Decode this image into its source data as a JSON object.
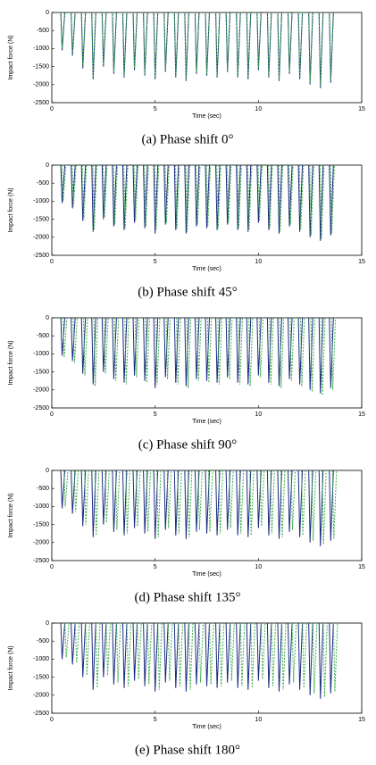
{
  "chart_data": [
    {
      "type": "spike",
      "caption": "(a) Phase shift 0°",
      "xlabel": "Time (sec)",
      "ylabel": "Impact force (N)",
      "xlim": [
        0,
        15
      ],
      "ylim": [
        -2500,
        0
      ],
      "xticks": [
        0,
        5,
        10,
        15
      ],
      "yticks": [
        0,
        -500,
        -1000,
        -1500,
        -2000,
        -2500
      ],
      "series": [
        {
          "color": "#1a2a80",
          "dash": false,
          "x": [
            0.5,
            1,
            1.5,
            2,
            2.5,
            3,
            3.5,
            4,
            4.5,
            5,
            5.5,
            6,
            6.5,
            7,
            7.5,
            8,
            8.5,
            9,
            9.5,
            10,
            10.5,
            11,
            11.5,
            12,
            12.5,
            13,
            13.5
          ],
          "values": [
            -1050,
            -1200,
            -1550,
            -1850,
            -1500,
            -1700,
            -1800,
            -1600,
            -1750,
            -1850,
            -1650,
            -1800,
            -1900,
            -1700,
            -1750,
            -1800,
            -1650,
            -1800,
            -1850,
            -1600,
            -1800,
            -1900,
            -1700,
            -1850,
            -2000,
            -2100,
            -1950
          ]
        },
        {
          "color": "#3cb04c",
          "dash": true,
          "x": [
            0.5,
            1,
            1.5,
            2,
            2.5,
            3,
            3.5,
            4,
            4.5,
            5,
            5.5,
            6,
            6.5,
            7,
            7.5,
            8,
            8.5,
            9,
            9.5,
            10,
            10.5,
            11,
            11.5,
            12,
            12.5,
            13,
            13.5
          ],
          "values": [
            -1000,
            -1150,
            -1500,
            -1800,
            -1450,
            -1650,
            -1750,
            -1550,
            -1700,
            -1800,
            -1600,
            -1750,
            -1850,
            -1650,
            -1700,
            -1750,
            -1600,
            -1750,
            -1800,
            -1550,
            -1750,
            -1850,
            -1650,
            -1800,
            -1950,
            -2050,
            -1900
          ]
        }
      ]
    },
    {
      "type": "spike",
      "caption": "(b) Phase shift 45°",
      "xlabel": "Time (sec)",
      "ylabel": "Impact force (N)",
      "xlim": [
        0,
        15
      ],
      "ylim": [
        -2500,
        0
      ],
      "xticks": [
        0,
        5,
        10,
        15
      ],
      "yticks": [
        0,
        -500,
        -1000,
        -1500,
        -2000,
        -2500
      ],
      "series": [
        {
          "color": "#1a2a80",
          "dash": false,
          "x": [
            0.5,
            1,
            1.5,
            2,
            2.5,
            3,
            3.5,
            4,
            4.5,
            5,
            5.5,
            6,
            6.5,
            7,
            7.5,
            8,
            8.5,
            9,
            9.5,
            10,
            10.5,
            11,
            11.5,
            12,
            12.5,
            13,
            13.5
          ],
          "values": [
            -1050,
            -1200,
            -1550,
            -1850,
            -1500,
            -1700,
            -1800,
            -1600,
            -1750,
            -1900,
            -1650,
            -1800,
            -1900,
            -1700,
            -1750,
            -1800,
            -1650,
            -1800,
            -1850,
            -1600,
            -1800,
            -1900,
            -1700,
            -1850,
            -2000,
            -2100,
            -1950
          ]
        },
        {
          "color": "#3cb04c",
          "dash": true,
          "x": [
            0.55,
            1.05,
            1.55,
            2.05,
            2.55,
            3.05,
            3.55,
            4.05,
            4.55,
            5.05,
            5.55,
            6.05,
            6.55,
            7.05,
            7.55,
            8.05,
            8.55,
            9.05,
            9.55,
            10.05,
            10.55,
            11.05,
            11.55,
            12.05,
            12.55,
            13.05,
            13.55
          ],
          "values": [
            -1000,
            -1150,
            -1500,
            -1800,
            -1450,
            -1650,
            -1750,
            -1550,
            -1700,
            -1800,
            -1600,
            -1750,
            -1850,
            -1650,
            -1700,
            -1750,
            -1600,
            -1750,
            -1800,
            -1550,
            -1750,
            -1850,
            -1650,
            -1800,
            -1950,
            -2050,
            -1900
          ]
        }
      ]
    },
    {
      "type": "spike",
      "caption": "(c) Phase shift 90°",
      "xlabel": "Time (sec)",
      "ylabel": "Impact force (N)",
      "xlim": [
        0,
        15
      ],
      "ylim": [
        -2500,
        0
      ],
      "xticks": [
        0,
        5,
        10,
        15
      ],
      "yticks": [
        0,
        -500,
        -1000,
        -1500,
        -2000,
        -2500
      ],
      "series": [
        {
          "color": "#1a2a80",
          "dash": false,
          "x": [
            0.5,
            1,
            1.5,
            2,
            2.5,
            3,
            3.5,
            4,
            4.5,
            5,
            5.5,
            6,
            6.5,
            7,
            7.5,
            8,
            8.5,
            9,
            9.5,
            10,
            10.5,
            11,
            11.5,
            12,
            12.5,
            13,
            13.5
          ],
          "values": [
            -1050,
            -1200,
            -1550,
            -1850,
            -1500,
            -1700,
            -1800,
            -1600,
            -1750,
            -1950,
            -1650,
            -1800,
            -1900,
            -1700,
            -1750,
            -1800,
            -1650,
            -1800,
            -1850,
            -1600,
            -1800,
            -1900,
            -1700,
            -1850,
            -2000,
            -2100,
            -1950
          ]
        },
        {
          "color": "#3cb04c",
          "dash": true,
          "x": [
            0.6,
            1.1,
            1.6,
            2.1,
            2.6,
            3.1,
            3.6,
            4.1,
            4.6,
            5.1,
            5.6,
            6.1,
            6.6,
            7.1,
            7.6,
            8.1,
            8.6,
            9.1,
            9.6,
            10.1,
            10.6,
            11.1,
            11.6,
            12.1,
            12.6,
            13.1,
            13.6
          ],
          "values": [
            -1100,
            -1250,
            -1600,
            -1900,
            -1550,
            -1750,
            -1850,
            -1650,
            -1800,
            -1850,
            -1700,
            -1850,
            -1950,
            -1750,
            -1800,
            -1850,
            -1700,
            -1850,
            -1900,
            -1650,
            -1850,
            -1950,
            -1750,
            -1900,
            -2050,
            -2150,
            -2000
          ]
        }
      ]
    },
    {
      "type": "spike",
      "caption": "(d) Phase shift 135°",
      "xlabel": "Time (sec)",
      "ylabel": "Impact force (N)",
      "xlim": [
        0,
        15
      ],
      "ylim": [
        -2500,
        0
      ],
      "xticks": [
        0,
        5,
        10,
        15
      ],
      "yticks": [
        0,
        -500,
        -1000,
        -1500,
        -2000,
        -2500
      ],
      "series": [
        {
          "color": "#1a2a80",
          "dash": false,
          "x": [
            0.5,
            1,
            1.5,
            2,
            2.5,
            3,
            3.5,
            4,
            4.5,
            5,
            5.5,
            6,
            6.5,
            7,
            7.5,
            8,
            8.5,
            9,
            9.5,
            10,
            10.5,
            11,
            11.5,
            12,
            12.5,
            13,
            13.5
          ],
          "values": [
            -1050,
            -1200,
            -1550,
            -1850,
            -1500,
            -1700,
            -1800,
            -1600,
            -1750,
            -1900,
            -1650,
            -1800,
            -1900,
            -1700,
            -1750,
            -1800,
            -1650,
            -1800,
            -1850,
            -1600,
            -1800,
            -1900,
            -1700,
            -1850,
            -2000,
            -2100,
            -1950
          ]
        },
        {
          "color": "#3cb04c",
          "dash": true,
          "x": [
            0.65,
            1.15,
            1.65,
            2.15,
            2.65,
            3.15,
            3.65,
            4.15,
            4.65,
            5.15,
            5.65,
            6.15,
            6.65,
            7.15,
            7.65,
            8.15,
            8.65,
            9.15,
            9.65,
            10.15,
            10.65,
            11.15,
            11.65,
            12.15,
            12.65,
            13.15,
            13.65
          ],
          "values": [
            -1000,
            -1150,
            -1500,
            -1800,
            -1450,
            -1650,
            -1750,
            -1550,
            -1700,
            -1850,
            -1600,
            -1750,
            -1850,
            -1650,
            -1700,
            -1750,
            -1600,
            -1750,
            -1800,
            -1550,
            -1750,
            -1850,
            -1650,
            -1800,
            -1950,
            -2050,
            -1900
          ]
        }
      ]
    },
    {
      "type": "spike",
      "caption": "(e) Phase shift 180°",
      "xlabel": "Time (sec)",
      "ylabel": "Impact force (N)",
      "xlim": [
        0,
        15
      ],
      "ylim": [
        -2500,
        0
      ],
      "xticks": [
        0,
        5,
        10,
        15
      ],
      "yticks": [
        0,
        -500,
        -1000,
        -1500,
        -2000,
        -2500
      ],
      "series": [
        {
          "color": "#1a2a80",
          "dash": false,
          "x": [
            0.5,
            1,
            1.5,
            2,
            2.5,
            3,
            3.5,
            4,
            4.5,
            5,
            5.5,
            6,
            6.5,
            7,
            7.5,
            8,
            8.5,
            9,
            9.5,
            10,
            10.5,
            11,
            11.5,
            12,
            12.5,
            13,
            13.5
          ],
          "values": [
            -1000,
            -1150,
            -1500,
            -1850,
            -1500,
            -1700,
            -1800,
            -1600,
            -1750,
            -1900,
            -1650,
            -1800,
            -1900,
            -1700,
            -1750,
            -1800,
            -1650,
            -1800,
            -1850,
            -1600,
            -1800,
            -1900,
            -1700,
            -1850,
            -2000,
            -2100,
            -1950
          ]
        },
        {
          "color": "#3cb04c",
          "dash": true,
          "x": [
            0.7,
            1.2,
            1.7,
            2.2,
            2.7,
            3.2,
            3.7,
            4.2,
            4.7,
            5.2,
            5.7,
            6.2,
            6.7,
            7.2,
            7.7,
            8.2,
            8.7,
            9.2,
            9.7,
            10.2,
            10.7,
            11.2,
            11.7,
            12.2,
            12.7,
            13.2,
            13.7
          ],
          "values": [
            -950,
            -1100,
            -1450,
            -1800,
            -1450,
            -1650,
            -1750,
            -1550,
            -1700,
            -1850,
            -1600,
            -1750,
            -1850,
            -1650,
            -1700,
            -1750,
            -1600,
            -1750,
            -1800,
            -1550,
            -1750,
            -1850,
            -1650,
            -1800,
            -1950,
            -2050,
            -1900
          ]
        }
      ]
    }
  ]
}
